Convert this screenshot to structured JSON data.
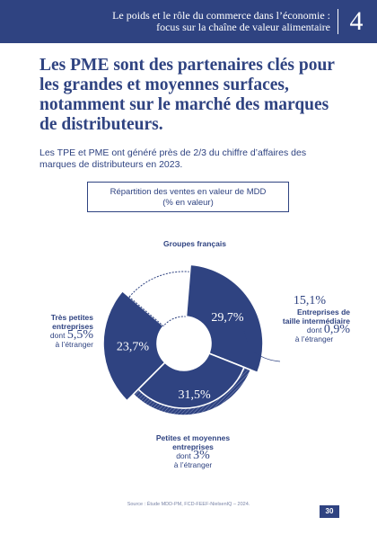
{
  "header": {
    "title_line1": "Le poids et le rôle du commerce dans l’économie :",
    "title_line2": "focus sur la chaîne de valeur alimentaire",
    "chapter_number": "4"
  },
  "headline": "Les PME sont des partenaires clés pour les grandes et moyennes surfaces, notamment sur le marché des marques de distributeurs.",
  "intro": "Les TPE et PME ont généré près de 2/3 du chiffre d’affaires des marques de distributeurs en 2023.",
  "chart_box": {
    "title": "Répartition des ventes en valeur de MDD",
    "subtitle": "(% en valeur)"
  },
  "chart_data": {
    "type": "pie",
    "categories": [
      "Groupes français",
      "Entreprises de taille intermédiaire",
      "Petites et moyennes entreprises",
      "Très petites entreprises"
    ],
    "values": [
      23.7,
      15.1,
      29.7,
      31.5
    ],
    "value_labels": [
      "23,7%",
      "15,1%",
      "29,7%",
      "31,5%"
    ],
    "colors": [
      "#2f4381",
      "#ffffff",
      "#2f4381",
      "#2f4381"
    ],
    "foreign_shares": {
      "Entreprises de taille intermédiaire": "0,9%",
      "Petites et moyennes entreprises": "3%",
      "Très petites entreprises": "5,5%"
    }
  },
  "labels": {
    "groupes": "Groupes français",
    "eti_value": "15,1%",
    "eti_line1": "Entreprises de",
    "eti_line2": "taille intermédiaire",
    "eti_dont": "dont",
    "eti_foreign": "0,9%",
    "eti_etranger": "à l’étranger",
    "tpe_line1": "Très petites",
    "tpe_line2": "entreprises",
    "tpe_dont": "dont",
    "tpe_foreign": "5,5%",
    "tpe_etranger": "à l’étranger",
    "pme_line1": "Petites et moyennes",
    "pme_line2": "entreprises",
    "pme_dont": "dont",
    "pme_foreign": "3%",
    "pme_etranger": "à l’étranger"
  },
  "footer": {
    "source": "Source : Étude MDD-PM, FCD-FEEF-NielsenIQ – 2024.",
    "page_number": "30"
  }
}
